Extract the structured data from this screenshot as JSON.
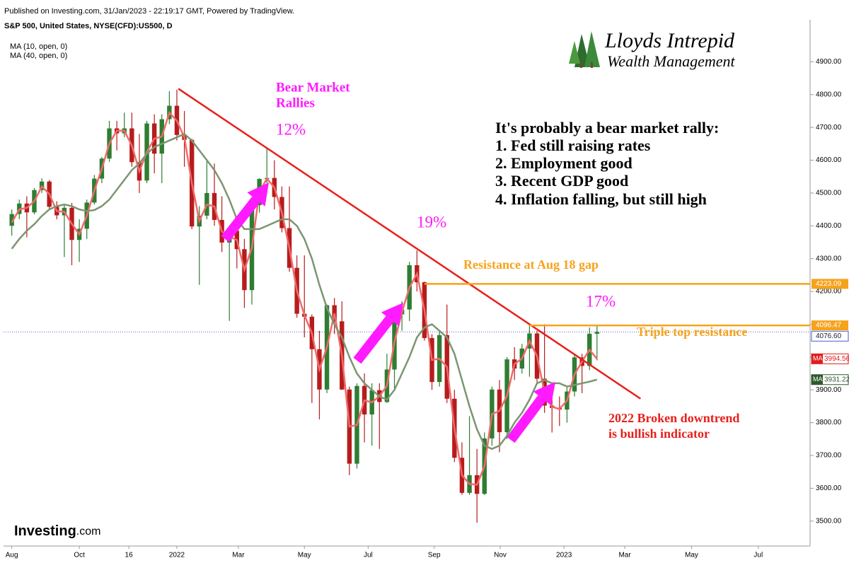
{
  "chart_data": {
    "type": "candlestick",
    "header": "Published on Investing.com, 31/Jan/2023 - 22:19:17 GMT, Powered by TradingView.",
    "title": "S&P 500, United States, NYSE(CFD):US500, D",
    "logo": {
      "line1": "Lloyds Intrepid",
      "line2": "Wealth Management"
    },
    "watermark": {
      "brand": "Investing",
      "suffix": ".com"
    },
    "up_color": "#2f7d32",
    "down_color": "#b71c1c",
    "open": [
      4400,
      4436,
      4468,
      4441,
      4509,
      4535,
      4458,
      4432,
      4455,
      4357,
      4391,
      4471,
      4544,
      4605,
      4697,
      4682,
      4697,
      4594,
      4538,
      4712,
      4620,
      4725,
      4766,
      4677,
      4662,
      4398,
      4431,
      4500,
      4418,
      4349,
      4385,
      4329,
      4204,
      4463,
      4543,
      4546,
      4488,
      4393,
      4272,
      4132,
      4123,
      4024,
      3901,
      4158,
      4109,
      3901,
      3675,
      3912,
      3825,
      3899,
      3863,
      3962,
      4130,
      4145,
      4280,
      4228,
      4058,
      3924,
      4067,
      3873,
      3693,
      3586,
      3640,
      3583,
      3752,
      3901,
      3771,
      3993,
      3965,
      4026,
      4072,
      3934,
      3852,
      3845,
      3840,
      3895,
      3999,
      3973,
      4071
    ],
    "high": [
      4450,
      4480,
      4490,
      4515,
      4545,
      4540,
      4475,
      4465,
      4470,
      4420,
      4480,
      4555,
      4610,
      4720,
      4720,
      4745,
      4745,
      4680,
      4720,
      4740,
      4740,
      4810,
      4815,
      4750,
      4665,
      4460,
      4600,
      4590,
      4490,
      4400,
      4420,
      4360,
      4470,
      4545,
      4640,
      4600,
      4520,
      4520,
      4310,
      4310,
      4130,
      4080,
      4160,
      4180,
      4170,
      3910,
      3920,
      3950,
      3920,
      3920,
      4010,
      4140,
      4170,
      4290,
      4325,
      4230,
      4070,
      4080,
      4160,
      3900,
      3740,
      3820,
      3720,
      3770,
      3910,
      3930,
      4000,
      4030,
      4040,
      4100,
      4080,
      4100,
      3880,
      3880,
      3910,
      4010,
      4010,
      4090,
      4095
    ],
    "low": [
      4370,
      4420,
      4365,
      4435,
      4500,
      4450,
      4420,
      4305,
      4280,
      4290,
      4360,
      4465,
      4530,
      4595,
      4630,
      4670,
      4580,
      4500,
      4530,
      4560,
      4530,
      4710,
      4660,
      4580,
      4390,
      4220,
      4420,
      4400,
      4320,
      4110,
      4270,
      4150,
      4160,
      4440,
      4530,
      4450,
      4380,
      4260,
      4120,
      4060,
      3860,
      3810,
      3890,
      4070,
      3900,
      3640,
      3660,
      3740,
      3730,
      3720,
      3860,
      3900,
      4080,
      4110,
      4200,
      4050,
      3900,
      3910,
      3860,
      3680,
      3580,
      3580,
      3495,
      3580,
      3730,
      3710,
      3750,
      3930,
      3950,
      3940,
      3920,
      3830,
      3770,
      3790,
      3800,
      3880,
      3890,
      3960,
      3990
    ],
    "close": [
      4436,
      4468,
      4441,
      4509,
      4535,
      4458,
      4432,
      4455,
      4357,
      4391,
      4471,
      4544,
      4605,
      4697,
      4682,
      4697,
      4594,
      4538,
      4712,
      4620,
      4725,
      4766,
      4677,
      4662,
      4398,
      4431,
      4500,
      4418,
      4349,
      4385,
      4329,
      4204,
      4463,
      4543,
      4546,
      4488,
      4393,
      4272,
      4132,
      4123,
      4024,
      3901,
      4158,
      4109,
      3901,
      3675,
      3912,
      3825,
      3899,
      3863,
      3962,
      4130,
      4145,
      4280,
      4228,
      4058,
      3924,
      4067,
      3873,
      3693,
      3586,
      3640,
      3583,
      3752,
      3901,
      3771,
      3993,
      3965,
      4026,
      4072,
      3934,
      3852,
      3845,
      3840,
      3895,
      3999,
      3973,
      4071,
      4076.6
    ],
    "series": [
      {
        "name": "MA (10, open, 0)",
        "color": "#f06a6a",
        "values": [
          4410,
          4450,
          4455,
          4475,
          4520,
          4497,
          4445,
          4443,
          4406,
          4374,
          4431,
          4507,
          4574,
          4651,
          4690,
          4690,
          4645,
          4566,
          4625,
          4666,
          4672,
          4745,
          4720,
          4670,
          4530,
          4415,
          4465,
          4459,
          4383,
          4367,
          4357,
          4266,
          4333,
          4503,
          4544,
          4517,
          4440,
          4332,
          4202,
          4128,
          4073,
          3962,
          4030,
          4133,
          4005,
          3788,
          3793,
          3868,
          3862,
          3881,
          3912,
          4046,
          4137,
          4212,
          4254,
          4143,
          3991,
          3995,
          3970,
          3783,
          3640,
          3613,
          3611,
          3667,
          3826,
          3836,
          3882,
          3979,
          3995,
          4049,
          4003,
          3893,
          3848,
          3842,
          3867,
          3947,
          3986,
          4022,
          3994.56
        ]
      },
      {
        "name": "MA (40, open, 0)",
        "color": "#7b9670",
        "values": [
          4330,
          4360,
          4385,
          4405,
          4430,
          4450,
          4460,
          4465,
          4460,
          4450,
          4445,
          4448,
          4460,
          4480,
          4510,
          4540,
          4570,
          4590,
          4620,
          4640,
          4650,
          4660,
          4670,
          4680,
          4660,
          4630,
          4600,
          4570,
          4530,
          4480,
          4420,
          4390,
          4390,
          4390,
          4400,
          4410,
          4420,
          4420,
          4400,
          4360,
          4300,
          4220,
          4150,
          4100,
          4060,
          4000,
          3950,
          3920,
          3900,
          3880,
          3870,
          3900,
          3950,
          4000,
          4060,
          4090,
          4100,
          4080,
          4060,
          4010,
          3930,
          3850,
          3780,
          3730,
          3720,
          3730,
          3760,
          3800,
          3830,
          3870,
          3920,
          3930,
          3920,
          3920,
          3910,
          3915,
          3920,
          3925,
          3931.22
        ]
      }
    ],
    "ma_box_label": "MA",
    "xlim": [
      -1.1,
      106.4
    ],
    "xticks": [
      {
        "value": 0,
        "label": "Aug"
      },
      {
        "value": 9,
        "label": "Oct"
      },
      {
        "value": 15.6,
        "label": "16"
      },
      {
        "value": 22,
        "label": "2022"
      },
      {
        "value": 30.2,
        "label": "Mar"
      },
      {
        "value": 39,
        "label": "May"
      },
      {
        "value": 47.5,
        "label": "Jul"
      },
      {
        "value": 56.3,
        "label": "Sep"
      },
      {
        "value": 65.1,
        "label": "Nov"
      },
      {
        "value": 73.6,
        "label": "2023"
      },
      {
        "value": 81.7,
        "label": "Mar"
      },
      {
        "value": 90.6,
        "label": "May"
      },
      {
        "value": 99.5,
        "label": "Jul"
      }
    ],
    "ylim": [
      3424,
      5028
    ],
    "yticks": [
      {
        "value": 3500,
        "label": "3500.00"
      },
      {
        "value": 3600,
        "label": "3600.00"
      },
      {
        "value": 3700,
        "label": "3700.00"
      },
      {
        "value": 3800,
        "label": "3800.00"
      },
      {
        "value": 3900,
        "label": "3900.00"
      },
      {
        "value": 4000,
        "label": "4000.00"
      },
      {
        "value": 4100,
        "label": "4100.00"
      },
      {
        "value": 4200,
        "label": "4200.00"
      },
      {
        "value": 4300,
        "label": "4300.00"
      },
      {
        "value": 4400,
        "label": "4400.00"
      },
      {
        "value": 4500,
        "label": "4500.00"
      },
      {
        "value": 4600,
        "label": "4600.00"
      },
      {
        "value": 4700,
        "label": "4700.00"
      },
      {
        "value": 4800,
        "label": "4800.00"
      },
      {
        "value": 4900,
        "label": "4900.00"
      }
    ],
    "resistance_lines": [
      {
        "value": 4223.09,
        "label": "4223.09",
        "x_start": 55,
        "color": "#f7a21b"
      },
      {
        "value": 4096.47,
        "label": "4096.47",
        "x_start": 69,
        "color": "#f7a21b"
      }
    ],
    "last_price": {
      "value": 4076.6,
      "label": "4076.60",
      "color": "#4a5fd0"
    },
    "trendline": {
      "x": [
        22.2,
        83.8
      ],
      "y": [
        4818,
        3873
      ],
      "color": "#e8201c"
    },
    "annotations": {
      "rallies": [
        "Bear Market",
        "Rallies"
      ],
      "pct1": "12%",
      "pct2": "19%",
      "pct3": "17%",
      "reasons_title": "It's probably a bear market rally:",
      "reasons": [
        "1. Fed still raising rates",
        "2. Employment good",
        "3. Recent GDP good",
        "4. Inflation falling, but still high"
      ],
      "gap": "Resistance at Aug 18 gap",
      "triple": "Triple top resistance",
      "broken": [
        "2022 Broken downtrend",
        "is bullish indicator"
      ]
    }
  }
}
